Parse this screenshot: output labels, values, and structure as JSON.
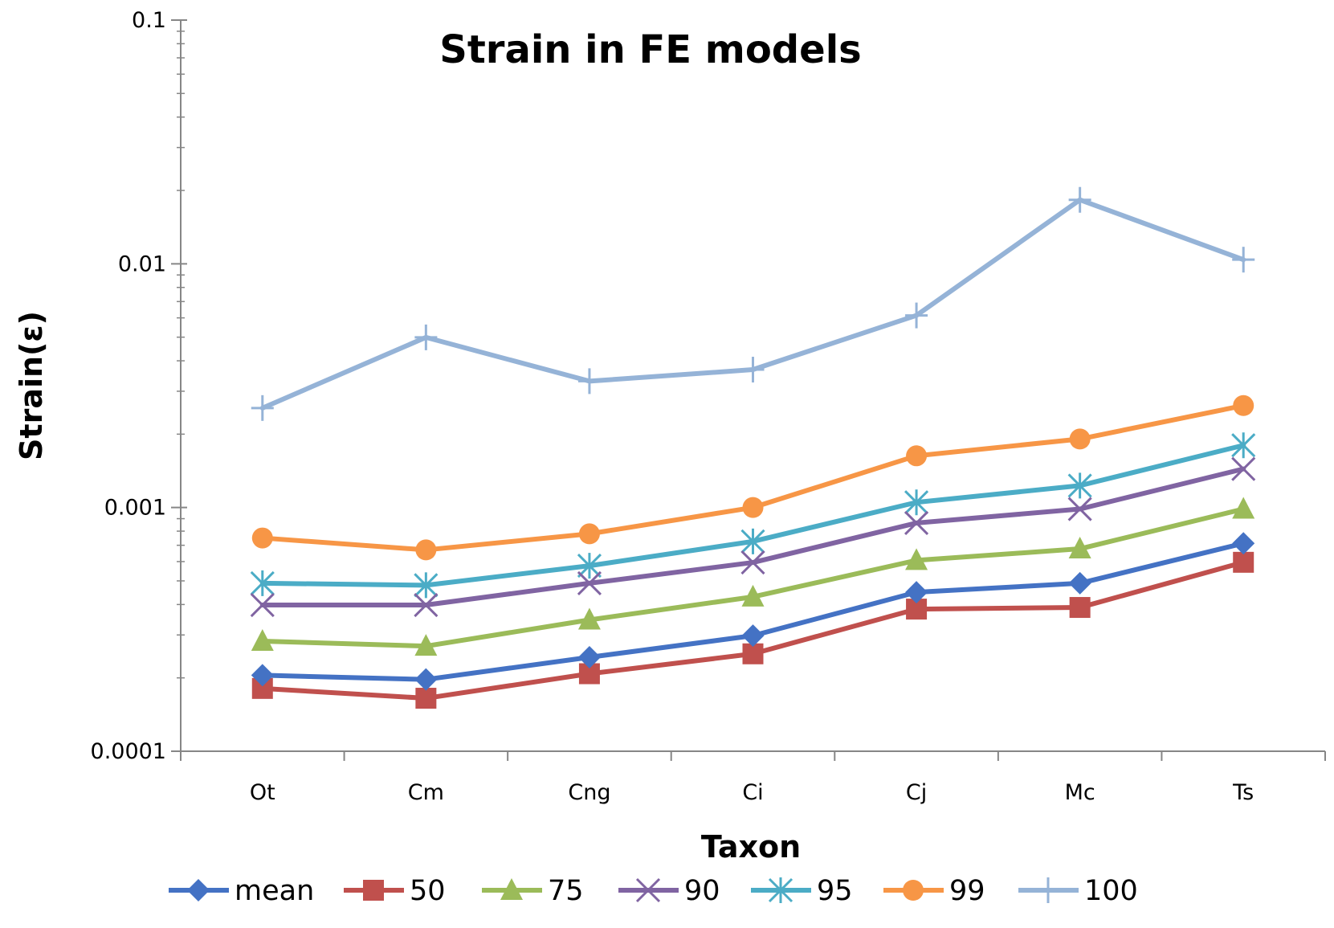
{
  "chart_data": {
    "type": "line",
    "title": "Strain in FE models",
    "xlabel": "Taxon",
    "ylabel": "Strain(ε)",
    "y_scale": "log",
    "ylim": [
      0.0001,
      0.1
    ],
    "y_ticks": [
      "0.0001",
      "0.001",
      "0.01",
      "0.1"
    ],
    "categories": [
      "Ot",
      "Cm",
      "Cng",
      "Ci",
      "Cj",
      "Mc",
      "Ts"
    ],
    "grid": false,
    "legend_position": "bottom",
    "series": [
      {
        "name": "mean",
        "color": "#4472C4",
        "marker": "diamond",
        "values": [
          0.000205,
          0.000197,
          0.000243,
          0.000298,
          0.000449,
          0.000489,
          0.000713
        ]
      },
      {
        "name": "50",
        "color": "#C0504D",
        "marker": "square",
        "values": [
          0.000181,
          0.000165,
          0.000208,
          0.000251,
          0.000383,
          0.000389,
          0.000596
        ]
      },
      {
        "name": "75",
        "color": "#9BBB59",
        "marker": "triangle",
        "values": [
          0.000283,
          0.00027,
          0.000346,
          0.00043,
          0.000607,
          0.000677,
          0.000986
        ]
      },
      {
        "name": "90",
        "color": "#8064A2",
        "marker": "x",
        "values": [
          0.000398,
          0.000398,
          0.000489,
          0.000595,
          0.000864,
          0.000986,
          0.00144
        ]
      },
      {
        "name": "95",
        "color": "#4BACC6",
        "marker": "star",
        "values": [
          0.000489,
          0.00048,
          0.000577,
          0.000726,
          0.00105,
          0.00123,
          0.0018
        ]
      },
      {
        "name": "99",
        "color": "#F79646",
        "marker": "circle",
        "values": [
          0.00075,
          0.00067,
          0.00078,
          0.001,
          0.00163,
          0.00191,
          0.00262
        ]
      },
      {
        "name": "100",
        "color": "#95B3D7",
        "marker": "plus",
        "values": [
          0.00256,
          0.00499,
          0.0033,
          0.00368,
          0.00614,
          0.0183,
          0.0104
        ]
      }
    ]
  }
}
